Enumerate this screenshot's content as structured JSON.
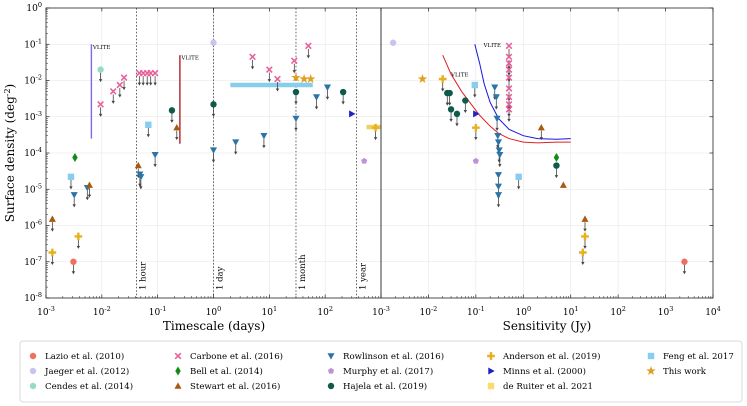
{
  "chart_data": {
    "type": "scatter",
    "ylabel": "Surface density (deg^-2)",
    "ylim": [
      1e-08,
      1
    ],
    "y_scale": "log",
    "yticks": [
      {
        "value": 1,
        "label": "10^0",
        "exp": "0"
      },
      {
        "value": 0.1,
        "label": "10^-1",
        "exp": "-1"
      },
      {
        "value": 0.01,
        "label": "10^-2",
        "exp": "-2"
      },
      {
        "value": 0.001,
        "label": "10^-3",
        "exp": "-3"
      },
      {
        "value": 0.0001,
        "label": "10^-4",
        "exp": "-4"
      },
      {
        "value": 1e-05,
        "label": "10^-5",
        "exp": "-5"
      },
      {
        "value": 1e-06,
        "label": "10^-6",
        "exp": "-6"
      },
      {
        "value": 1e-07,
        "label": "10^-7",
        "exp": "-7"
      },
      {
        "value": 1e-08,
        "label": "10^-8",
        "exp": "-8"
      }
    ],
    "panels": [
      {
        "name": "timescale",
        "xlabel": "Timescale (days)",
        "x_scale": "log",
        "xlim": [
          0.001,
          1000
        ],
        "xticks": [
          {
            "value": 0.001,
            "exp": "-3"
          },
          {
            "value": 0.01,
            "exp": "-2"
          },
          {
            "value": 0.1,
            "exp": "-1"
          },
          {
            "value": 1,
            "exp": "0"
          },
          {
            "value": 10,
            "exp": "1"
          },
          {
            "value": 100,
            "exp": "2"
          },
          {
            "value": 1000,
            "exp": "3"
          }
        ],
        "reference_lines": [
          {
            "x": 0.0417,
            "label": "1 hour"
          },
          {
            "x": 1,
            "label": "1 day"
          },
          {
            "x": 30,
            "label": "1 month"
          },
          {
            "x": 365,
            "label": "1 year"
          }
        ],
        "vlite_text": "VLITE",
        "vlite_lines": [
          {
            "x": 0.0065,
            "y0": 0.00025,
            "y1": 0.1,
            "color": "#7b68ee"
          },
          {
            "x": 0.25,
            "y0": 0.00018,
            "y1": 0.05,
            "color": "#b22222"
          }
        ],
        "bands": [
          {
            "x0": 2,
            "x1": 60,
            "y": 0.0075,
            "color": "#87ceeb"
          },
          {
            "x0": 550,
            "x1": 1000,
            "y": 0.00052,
            "color": "#f0d060"
          }
        ],
        "points": [
          {
            "x": 0.0013,
            "y": 1.5e-06,
            "s": "stewart",
            "up": true
          },
          {
            "x": 0.0013,
            "y": 1.8e-07,
            "s": "anderson",
            "up": true
          },
          {
            "x": 0.0031,
            "y": 1e-07,
            "s": "lazio",
            "up": true
          },
          {
            "x": 0.0028,
            "y": 2.2e-05,
            "s": "feng",
            "up": true
          },
          {
            "x": 0.0032,
            "y": 7e-06,
            "s": "rowlinson",
            "up": true
          },
          {
            "x": 0.0033,
            "y": 7.5e-05,
            "s": "bell",
            "up": false
          },
          {
            "x": 0.0038,
            "y": 5e-07,
            "s": "anderson",
            "up": true
          },
          {
            "x": 0.0055,
            "y": 1.1e-05,
            "s": "rowlinson",
            "up": true
          },
          {
            "x": 0.006,
            "y": 1.3e-05,
            "s": "stewart",
            "up": true
          },
          {
            "x": 0.0095,
            "y": 0.02,
            "s": "cendes",
            "up": true
          },
          {
            "x": 0.0095,
            "y": 0.0022,
            "s": "carbone",
            "up": true
          },
          {
            "x": 0.016,
            "y": 0.005,
            "s": "carbone",
            "up": true
          },
          {
            "x": 0.021,
            "y": 0.0075,
            "s": "carbone",
            "up": true
          },
          {
            "x": 0.025,
            "y": 0.012,
            "s": "carbone",
            "up": true
          },
          {
            "x": 0.045,
            "y": 4.5e-05,
            "s": "stewart",
            "up": true
          },
          {
            "x": 0.048,
            "y": 2.6e-05,
            "s": "rowlinson",
            "up": true
          },
          {
            "x": 0.05,
            "y": 2.2e-05,
            "s": "rowlinson",
            "up": true
          },
          {
            "x": 0.047,
            "y": 0.016,
            "s": "carbone",
            "up": true
          },
          {
            "x": 0.055,
            "y": 0.016,
            "s": "carbone",
            "up": true
          },
          {
            "x": 0.065,
            "y": 0.016,
            "s": "carbone",
            "up": true
          },
          {
            "x": 0.075,
            "y": 0.016,
            "s": "carbone",
            "up": true
          },
          {
            "x": 0.09,
            "y": 0.016,
            "s": "carbone",
            "up": true
          },
          {
            "x": 0.068,
            "y": 0.0006,
            "s": "feng",
            "up": true
          },
          {
            "x": 0.09,
            "y": 9e-05,
            "s": "rowlinson",
            "up": true
          },
          {
            "x": 0.18,
            "y": 0.0015,
            "s": "hajela",
            "up": true
          },
          {
            "x": 0.22,
            "y": 0.0005,
            "s": "stewart",
            "up": true
          },
          {
            "x": 1,
            "y": 0.11,
            "s": "jaeger",
            "up": false
          },
          {
            "x": 1,
            "y": 0.0022,
            "s": "hajela",
            "up": true
          },
          {
            "x": 1,
            "y": 0.00012,
            "s": "rowlinson",
            "up": true
          },
          {
            "x": 2.5,
            "y": 0.0002,
            "s": "rowlinson",
            "up": true
          },
          {
            "x": 5,
            "y": 0.045,
            "s": "carbone",
            "up": true
          },
          {
            "x": 8,
            "y": 0.0003,
            "s": "rowlinson",
            "up": true
          },
          {
            "x": 10,
            "y": 0.02,
            "s": "carbone",
            "up": true
          },
          {
            "x": 14,
            "y": 0.011,
            "s": "carbone",
            "up": true
          },
          {
            "x": 28,
            "y": 0.035,
            "s": "carbone",
            "up": true
          },
          {
            "x": 30,
            "y": 0.012,
            "s": "thiswork",
            "up": false
          },
          {
            "x": 30,
            "y": 0.0048,
            "s": "hajela",
            "up": true
          },
          {
            "x": 30,
            "y": 0.0009,
            "s": "rowlinson",
            "up": true
          },
          {
            "x": 42,
            "y": 0.011,
            "s": "thiswork",
            "up": false
          },
          {
            "x": 55,
            "y": 0.011,
            "s": "thiswork",
            "up": false
          },
          {
            "x": 50,
            "y": 0.09,
            "s": "carbone",
            "up": true
          },
          {
            "x": 70,
            "y": 0.0035,
            "s": "rowlinson",
            "up": true
          },
          {
            "x": 110,
            "y": 0.0065,
            "s": "rowlinson",
            "up": true
          },
          {
            "x": 300,
            "y": 0.0012,
            "s": "minns",
            "up": false
          },
          {
            "x": 210,
            "y": 0.0048,
            "s": "hajela",
            "up": true
          },
          {
            "x": 500,
            "y": 6e-05,
            "s": "murphy",
            "up": false
          },
          {
            "x": 800,
            "y": 0.0005,
            "s": "anderson",
            "up": true
          }
        ]
      },
      {
        "name": "sensitivity",
        "xlabel": "Sensitivity (Jy)",
        "x_scale": "log",
        "xlim": [
          0.001,
          10000
        ],
        "xticks": [
          {
            "value": 0.001,
            "exp": "-3"
          },
          {
            "value": 0.01,
            "exp": "-2"
          },
          {
            "value": 0.1,
            "exp": "-1"
          },
          {
            "value": 1,
            "exp": "0"
          },
          {
            "value": 10,
            "exp": "1"
          },
          {
            "value": 100,
            "exp": "2"
          },
          {
            "value": 1000,
            "exp": "3"
          },
          {
            "value": 10000,
            "exp": "4"
          }
        ],
        "vlite_text": "VLITE",
        "curves": [
          {
            "name": "VLITE blue",
            "color": "#1515e0",
            "x": [
              0.095,
              0.12,
              0.15,
              0.2,
              0.3,
              0.5,
              1.0,
              2.0,
              5.0,
              10.0
            ],
            "y": [
              0.1,
              0.03,
              0.008,
              0.0025,
              0.0009,
              0.00045,
              0.0003,
              0.00025,
              0.00024,
              0.00025
            ]
          },
          {
            "name": "VLITE red",
            "color": "#e02020",
            "x": [
              0.02,
              0.03,
              0.05,
              0.08,
              0.12,
              0.2,
              0.3,
              0.5,
              1.0,
              2.0,
              5.0,
              10.0
            ],
            "y": [
              0.05,
              0.015,
              0.005,
              0.0022,
              0.0011,
              0.00055,
              0.00035,
              0.00025,
              0.0002,
              0.00019,
              0.0002,
              0.0002
            ]
          }
        ],
        "points": [
          {
            "x": 0.0018,
            "y": 0.11,
            "s": "jaeger",
            "up": false
          },
          {
            "x": 0.0075,
            "y": 0.011,
            "s": "thiswork",
            "up": false
          },
          {
            "x": 0.02,
            "y": 0.011,
            "s": "anderson",
            "up": true
          },
          {
            "x": 0.025,
            "y": 0.0045,
            "s": "hajela",
            "up": true
          },
          {
            "x": 0.028,
            "y": 0.0045,
            "s": "hajela",
            "up": true
          },
          {
            "x": 0.03,
            "y": 0.0016,
            "s": "hajela",
            "up": true
          },
          {
            "x": 0.04,
            "y": 0.0012,
            "s": "hajela",
            "up": true
          },
          {
            "x": 0.06,
            "y": 0.0028,
            "s": "hajela",
            "up": true
          },
          {
            "x": 0.095,
            "y": 0.0075,
            "s": "feng",
            "up": true
          },
          {
            "x": 0.1,
            "y": 0.0012,
            "s": "minns",
            "up": false
          },
          {
            "x": 0.1,
            "y": 0.0005,
            "s": "anderson",
            "up": true
          },
          {
            "x": 0.1,
            "y": 6e-05,
            "s": "murphy",
            "up": false
          },
          {
            "x": 0.25,
            "y": 0.0065,
            "s": "rowlinson",
            "up": true
          },
          {
            "x": 0.27,
            "y": 0.0035,
            "s": "rowlinson",
            "up": true
          },
          {
            "x": 0.28,
            "y": 0.0009,
            "s": "rowlinson",
            "up": true
          },
          {
            "x": 0.29,
            "y": 0.0003,
            "s": "rowlinson",
            "up": true
          },
          {
            "x": 0.3,
            "y": 0.0002,
            "s": "rowlinson",
            "up": true
          },
          {
            "x": 0.31,
            "y": 0.00012,
            "s": "rowlinson",
            "up": true
          },
          {
            "x": 0.32,
            "y": 9e-05,
            "s": "rowlinson",
            "up": true
          },
          {
            "x": 0.3,
            "y": 2.5e-05,
            "s": "rowlinson",
            "up": true
          },
          {
            "x": 0.3,
            "y": 1.2e-05,
            "s": "rowlinson",
            "up": true
          },
          {
            "x": 0.3,
            "y": 7e-06,
            "s": "rowlinson",
            "up": true
          },
          {
            "x": 0.5,
            "y": 0.09,
            "s": "carbone",
            "up": true
          },
          {
            "x": 0.5,
            "y": 0.045,
            "s": "carbone",
            "up": true
          },
          {
            "x": 0.5,
            "y": 0.03,
            "s": "carbone",
            "up": true
          },
          {
            "x": 0.5,
            "y": 0.02,
            "s": "carbone",
            "up": true
          },
          {
            "x": 0.5,
            "y": 0.012,
            "s": "carbone",
            "up": true
          },
          {
            "x": 0.5,
            "y": 0.006,
            "s": "carbone",
            "up": true
          },
          {
            "x": 0.5,
            "y": 0.0035,
            "s": "carbone",
            "up": true
          },
          {
            "x": 0.5,
            "y": 0.0022,
            "s": "carbone",
            "up": true
          },
          {
            "x": 0.5,
            "y": 0.0016,
            "s": "carbone",
            "up": true
          },
          {
            "x": 0.8,
            "y": 2.2e-05,
            "s": "feng",
            "up": true
          },
          {
            "x": 2.4,
            "y": 0.0005,
            "s": "stewart",
            "up": true
          },
          {
            "x": 5,
            "y": 7.5e-05,
            "s": "bell",
            "up": false
          },
          {
            "x": 5,
            "y": 4.5e-05,
            "s": "hajela",
            "up": true
          },
          {
            "x": 7,
            "y": 1.3e-05,
            "s": "stewart",
            "up": false
          },
          {
            "x": 20,
            "y": 1.5e-06,
            "s": "stewart",
            "up": true
          },
          {
            "x": 20,
            "y": 5e-07,
            "s": "anderson",
            "up": true
          },
          {
            "x": 18,
            "y": 1.8e-07,
            "s": "anderson",
            "up": true
          },
          {
            "x": 2500,
            "y": 1e-07,
            "s": "lazio",
            "up": true
          }
        ]
      }
    ],
    "legend": {
      "placement": "bottom",
      "entries": [
        {
          "key": "lazio",
          "label": "Lazio et al. (2010)",
          "marker": "circle",
          "color": "#f07060"
        },
        {
          "key": "jaeger",
          "label": "Jaeger et al. (2012)",
          "marker": "circle",
          "color": "#c8c4f0"
        },
        {
          "key": "cendes",
          "label": "Cendes et al. (2014)",
          "marker": "circle",
          "color": "#98dcc0"
        },
        {
          "key": "carbone",
          "label": "Carbone et al. (2016)",
          "marker": "x",
          "color": "#e8609a"
        },
        {
          "key": "bell",
          "label": "Bell et al. (2014)",
          "marker": "diamond",
          "color": "#138a13"
        },
        {
          "key": "stewart",
          "label": "Stewart et al. (2016)",
          "marker": "triangle-up",
          "color": "#a85a10"
        },
        {
          "key": "rowlinson",
          "label": "Rowlinson et al. (2016)",
          "marker": "triangle-down",
          "color": "#2a74a8"
        },
        {
          "key": "murphy",
          "label": "Murphy et al. (2017)",
          "marker": "pentagon",
          "color": "#c090d8"
        },
        {
          "key": "hajela",
          "label": "Hajela et al. (2019)",
          "marker": "circle",
          "color": "#0f5a48"
        },
        {
          "key": "anderson",
          "label": "Anderson et al. (2019)",
          "marker": "plus",
          "color": "#e6b020"
        },
        {
          "key": "minns",
          "label": "Minns et al. (2000)",
          "marker": "triangle-right",
          "color": "#2020c8"
        },
        {
          "key": "deruiter",
          "label": "de Ruiter et al. 2021",
          "marker": "square",
          "color": "#f8dc70"
        },
        {
          "key": "feng",
          "label": "Feng et al. 2017",
          "marker": "square",
          "color": "#88ccf0"
        },
        {
          "key": "thiswork",
          "label": "This work",
          "marker": "star",
          "color": "#e0a020"
        }
      ]
    }
  }
}
